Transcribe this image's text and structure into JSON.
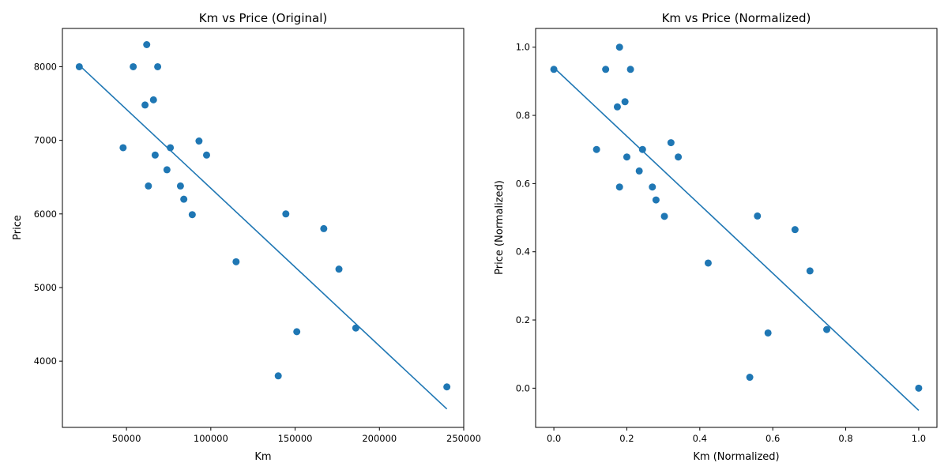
{
  "chart_data": [
    {
      "type": "scatter",
      "title": "Km vs Price (Original)",
      "xlabel": "Km",
      "ylabel": "Price",
      "xlim": [
        12000,
        250000
      ],
      "ylim": [
        3100,
        8520
      ],
      "xticks": [
        50000,
        100000,
        150000,
        200000,
        250000
      ],
      "xtick_labels": [
        "50000",
        "100000",
        "150000",
        "200000",
        "250000"
      ],
      "yticks": [
        4000,
        5000,
        6000,
        7000,
        8000
      ],
      "ytick_labels": [
        "4000",
        "5000",
        "6000",
        "7000",
        "8000"
      ],
      "grid": false,
      "series": [
        {
          "color": "#1f77b4",
          "x": [
            22000,
            48000,
            54000,
            61000,
            62000,
            63000,
            66000,
            67000,
            68500,
            74000,
            76000,
            82000,
            84000,
            89000,
            93000,
            97500,
            115000,
            140000,
            144500,
            151000,
            167000,
            176000,
            186000,
            240000
          ],
          "y": [
            8000,
            6900,
            8000,
            7480,
            8300,
            6380,
            7550,
            6800,
            8000,
            6600,
            6900,
            6380,
            6200,
            5990,
            6990,
            6800,
            5350,
            3800,
            6000,
            4400,
            5800,
            5250,
            4450,
            3650
          ]
        }
      ],
      "fit_line": {
        "color": "#1f77b4",
        "x": [
          22000,
          240000
        ],
        "y": [
          8020,
          3350
        ]
      }
    },
    {
      "type": "scatter",
      "title": "Km vs Price (Normalized)",
      "xlabel": "Km (Normalized)",
      "ylabel": "Price (Normalized)",
      "xlim": [
        -0.05,
        1.05
      ],
      "ylim": [
        -0.115,
        1.055
      ],
      "xticks": [
        0.0,
        0.2,
        0.4,
        0.6,
        0.8,
        1.0
      ],
      "xtick_labels": [
        "0.0",
        "0.2",
        "0.4",
        "0.6",
        "0.8",
        "1.0"
      ],
      "yticks": [
        0.0,
        0.2,
        0.4,
        0.6,
        0.8,
        1.0
      ],
      "ytick_labels": [
        "0.0",
        "0.2",
        "0.4",
        "0.6",
        "0.8",
        "1.0"
      ],
      "grid": false,
      "series": [
        {
          "color": "#1f77b4",
          "x": [
            0.0,
            0.117,
            0.142,
            0.174,
            0.18,
            0.18,
            0.195,
            0.2,
            0.21,
            0.234,
            0.243,
            0.27,
            0.28,
            0.303,
            0.321,
            0.341,
            0.423,
            0.537,
            0.558,
            0.587,
            0.661,
            0.702,
            0.748,
            1.0
          ],
          "y": [
            0.935,
            0.7,
            0.935,
            0.825,
            1.0,
            0.59,
            0.84,
            0.678,
            0.935,
            0.637,
            0.7,
            0.59,
            0.552,
            0.504,
            0.72,
            0.678,
            0.367,
            0.032,
            0.505,
            0.162,
            0.465,
            0.344,
            0.172,
            0.0
          ]
        }
      ],
      "fit_line": {
        "color": "#1f77b4",
        "x": [
          0.0,
          1.0
        ],
        "y": [
          0.94,
          -0.065
        ]
      }
    }
  ]
}
